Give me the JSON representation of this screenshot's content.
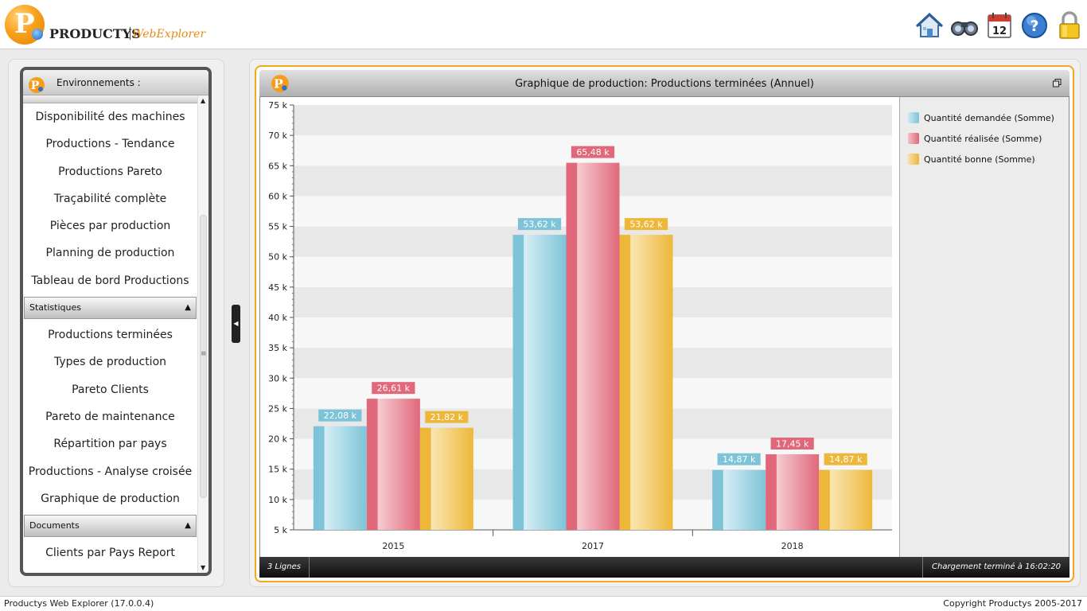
{
  "header": {
    "brand": "PRODUCTYS",
    "brand_sub": "WebExplorer",
    "logo_letter": "P",
    "icons": [
      "home-icon",
      "binoculars-icon",
      "calendar-icon",
      "help-icon",
      "lock-icon"
    ],
    "calendar_day": "12"
  },
  "sidebar": {
    "title": "Environnements :",
    "groups": [
      {
        "title": "",
        "items": [
          "Disponibilité des machines",
          "Productions - Tendance",
          "Productions Pareto",
          "Traçabilité complète",
          "Pièces par production",
          "Planning de production",
          "Tableau de bord Productions"
        ]
      },
      {
        "title": "Statistiques",
        "items": [
          "Productions terminées",
          "Types de production",
          "Pareto Clients",
          "Pareto de maintenance",
          "Répartition par pays",
          "Productions - Analyse croisée",
          "Graphique de production"
        ]
      },
      {
        "title": "Documents",
        "items": [
          "Clients par Pays Report"
        ]
      }
    ]
  },
  "panel": {
    "title": "Graphique de production: Productions terminées (Annuel)",
    "status_left": "3 Lignes",
    "status_right": "Chargement terminé à 16:02:20"
  },
  "chart_data": {
    "type": "bar",
    "categories": [
      "2015",
      "2017",
      "2018"
    ],
    "series": [
      {
        "name": "Quantité demandée (Somme)",
        "values": [
          22080,
          53620,
          14870
        ],
        "labels": [
          "22,08 k",
          "53,62 k",
          "14,87 k"
        ],
        "color": "#7ec4d8"
      },
      {
        "name": "Quantité réalisée (Somme)",
        "values": [
          26610,
          65480,
          17450
        ],
        "labels": [
          "26,61 k",
          "65,48 k",
          "17,45 k"
        ],
        "color": "#e0687a"
      },
      {
        "name": "Quantité bonne (Somme)",
        "values": [
          21820,
          53620,
          14870
        ],
        "labels": [
          "21,82 k",
          "53,62 k",
          "14,87 k"
        ],
        "color": "#edb83a"
      }
    ],
    "ylim": [
      5000,
      75000
    ],
    "yticks": [
      5000,
      10000,
      15000,
      20000,
      25000,
      30000,
      35000,
      40000,
      45000,
      50000,
      55000,
      60000,
      65000,
      70000,
      75000
    ],
    "ytick_labels": [
      "5 k",
      "10 k",
      "15 k",
      "20 k",
      "25 k",
      "30 k",
      "35 k",
      "40 k",
      "45 k",
      "50 k",
      "55 k",
      "60 k",
      "65 k",
      "70 k",
      "75 k"
    ],
    "title": "",
    "xlabel": "",
    "ylabel": "",
    "legend": "right",
    "grid": true
  },
  "footer": {
    "left": "Productys Web Explorer  (17.0.0.4)",
    "right": "Copyright Productys 2005-2017"
  }
}
